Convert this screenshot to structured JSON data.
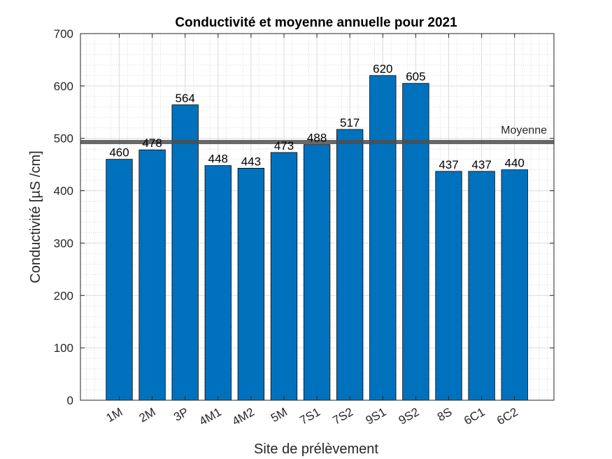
{
  "chart_data": {
    "type": "bar",
    "title": "Conductivité et moyenne annuelle pour 2021",
    "xlabel": "Site de prélèvement",
    "ylabel": "Conductivité [µS /cm]",
    "categories": [
      "1M",
      "2M",
      "3P",
      "4M1",
      "4M2",
      "5M",
      "7S1",
      "7S2",
      "9S1",
      "9S2",
      "8S",
      "6C1",
      "6C2"
    ],
    "values": [
      460,
      478,
      564,
      448,
      443,
      473,
      488,
      517,
      620,
      605,
      437,
      437,
      440
    ],
    "data_labels": [
      "460",
      "478",
      "564",
      "448",
      "443",
      "473",
      "488",
      "517",
      "620",
      "605",
      "437",
      "437",
      "440"
    ],
    "ylim": [
      0,
      700
    ],
    "yticks": [
      0,
      100,
      200,
      300,
      400,
      500,
      600,
      700
    ],
    "ytick_labels": [
      "0",
      "100",
      "200",
      "300",
      "400",
      "500",
      "600",
      "700"
    ],
    "reference_line": {
      "label": "Moyenne",
      "value": 493
    },
    "grid": true,
    "minor_grid": true,
    "bar_color": "#0072BD",
    "reference_line_color": "#4D4D4D"
  }
}
